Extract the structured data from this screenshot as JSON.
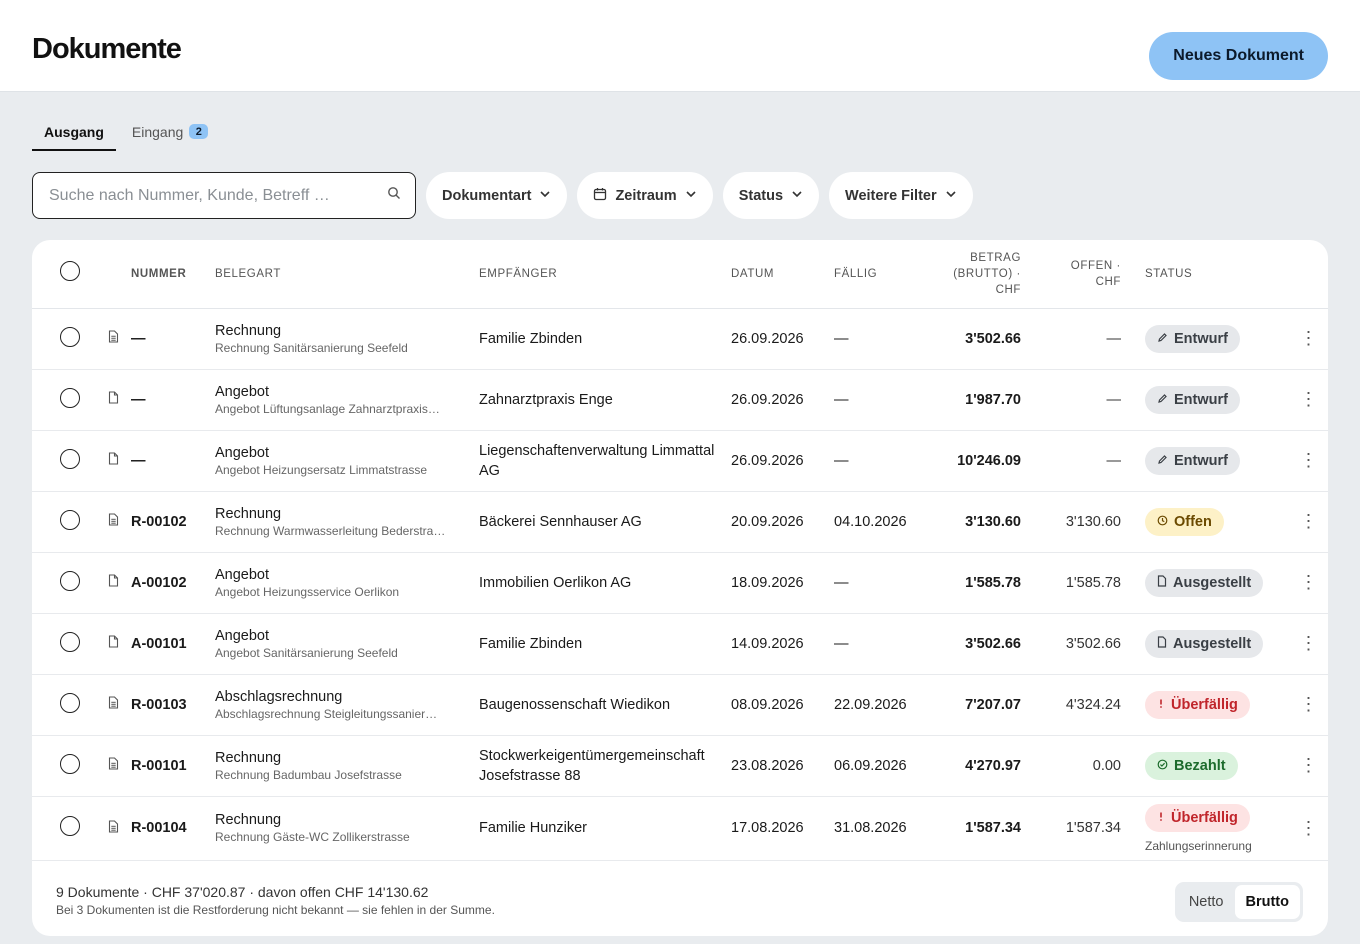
{
  "header": {
    "title": "Dokumente",
    "new_button": "Neues Dokument"
  },
  "tabs": [
    {
      "label": "Ausgang",
      "active": true
    },
    {
      "label": "Eingang",
      "badge": "2",
      "active": false
    }
  ],
  "search": {
    "placeholder": "Suche nach Nummer, Kunde, Betreff …",
    "value": ""
  },
  "filters": {
    "doc_type": "Dokumentart",
    "period": "Zeitraum",
    "status": "Status",
    "more": "Weitere Filter"
  },
  "table": {
    "columns": {
      "number": "NUMMER",
      "type": "BELEGART",
      "recipient": "EMPFÄNGER",
      "date": "DATUM",
      "due": "FÄLLIG",
      "amount_1": "BETRAG",
      "amount_2": "(BRUTTO) ·",
      "amount_3": "CHF",
      "open_1": "OFFEN ·",
      "open_2": "CHF",
      "status": "STATUS"
    },
    "rows": [
      {
        "number": "—",
        "type": "Rechnung",
        "subject": "Rechnung Sanitärsanierung Seefeld",
        "recipient": "Familie Zbinden",
        "date": "26.09.2026",
        "due": "—",
        "amount": "3'502.66",
        "open": "—",
        "status": "Entwurf",
        "status_kind": "draft",
        "status_icon": "pencil-icon"
      },
      {
        "number": "—",
        "type": "Angebot",
        "subject": "Angebot Lüftungsanlage Zahnarztpraxis…",
        "recipient": "Zahnarztpraxis Enge",
        "date": "26.09.2026",
        "due": "—",
        "amount": "1'987.70",
        "open": "—",
        "status": "Entwurf",
        "status_kind": "draft",
        "status_icon": "pencil-icon"
      },
      {
        "number": "—",
        "type": "Angebot",
        "subject": "Angebot Heizungsersatz Limmatstrasse",
        "recipient": "Liegenschaftenverwaltung Limmattal AG",
        "date": "26.09.2026",
        "due": "—",
        "amount": "10'246.09",
        "open": "—",
        "status": "Entwurf",
        "status_kind": "draft",
        "status_icon": "pencil-icon"
      },
      {
        "number": "R-00102",
        "type": "Rechnung",
        "subject": "Rechnung Warmwasserleitung Bederstra…",
        "recipient": "Bäckerei Sennhauser AG",
        "date": "20.09.2026",
        "due": "04.10.2026",
        "amount": "3'130.60",
        "open": "3'130.60",
        "status": "Offen",
        "status_kind": "open",
        "status_icon": "clock-icon"
      },
      {
        "number": "A-00102",
        "type": "Angebot",
        "subject": "Angebot Heizungsservice Oerlikon",
        "recipient": "Immobilien Oerlikon AG",
        "date": "18.09.2026",
        "due": "—",
        "amount": "1'585.78",
        "open": "1'585.78",
        "status": "Ausgestellt",
        "status_kind": "issued",
        "status_icon": "document-icon"
      },
      {
        "number": "A-00101",
        "type": "Angebot",
        "subject": "Angebot Sanitärsanierung Seefeld",
        "recipient": "Familie Zbinden",
        "date": "14.09.2026",
        "due": "—",
        "amount": "3'502.66",
        "open": "3'502.66",
        "status": "Ausgestellt",
        "status_kind": "issued",
        "status_icon": "document-icon"
      },
      {
        "number": "R-00103",
        "type": "Abschlagsrechnung",
        "subject": "Abschlagsrechnung Steigleitungssanier…",
        "recipient": "Baugenossenschaft Wiedikon",
        "date": "08.09.2026",
        "due": "22.09.2026",
        "amount": "7'207.07",
        "open": "4'324.24",
        "status": "Überfällig",
        "status_kind": "over",
        "status_icon": "exclamation-icon"
      },
      {
        "number": "R-00101",
        "type": "Rechnung",
        "subject": "Rechnung Badumbau Josefstrasse",
        "recipient": "Stockwerkeigentümergemeinschaft Josefstrasse 88",
        "date": "23.08.2026",
        "due": "06.09.2026",
        "amount": "4'270.97",
        "open": "0.00",
        "status": "Bezahlt",
        "status_kind": "paid",
        "status_icon": "check-circle-icon"
      },
      {
        "number": "R-00104",
        "type": "Rechnung",
        "subject": "Rechnung Gäste-WC Zollikerstrasse",
        "recipient": "Familie Hunziker",
        "date": "17.08.2026",
        "due": "31.08.2026",
        "amount": "1'587.34",
        "open": "1'587.34",
        "status": "Überfällig",
        "status_kind": "over",
        "status_icon": "exclamation-icon",
        "status_note": "Zahlungserinnerung"
      }
    ]
  },
  "footer": {
    "summary": "9 Dokumente · CHF 37'020.87 · davon offen CHF 14'130.62",
    "note": "Bei 3 Dokumenten ist die Restforderung nicht bekannt — sie fehlen in der Summe.",
    "toggle": {
      "netto": "Netto",
      "brutto": "Brutto",
      "selected": "Brutto"
    }
  },
  "colors": {
    "accent": "#8ec3f5",
    "background": "#e9ecef",
    "overdue": "#c0252b",
    "paid": "#1c6b2c",
    "open": "#6b4a00"
  }
}
